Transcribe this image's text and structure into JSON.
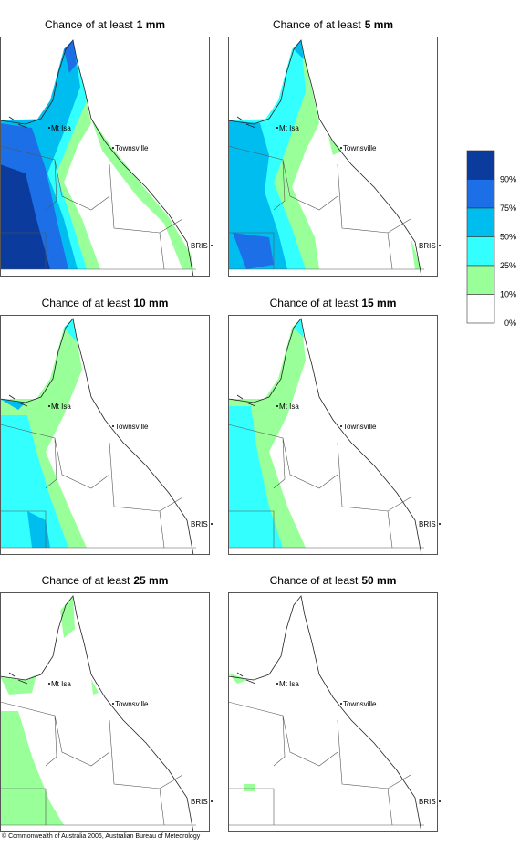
{
  "panels": [
    {
      "title": "Chance of at least",
      "amount": "1 mm",
      "places": [
        "Townsville",
        "Mt Isa",
        "BRIS"
      ]
    },
    {
      "title": "Chance of at least",
      "amount": "5 mm",
      "places": [
        "Townsville",
        "Mt Isa",
        "BRIS"
      ]
    },
    {
      "title": "Chance of at least",
      "amount": "10 mm",
      "places": [
        "Townsville",
        "Mt Isa",
        "BRIS"
      ]
    },
    {
      "title": "Chance of at least",
      "amount": "15 mm",
      "places": [
        "Townsville",
        "Mt Isa",
        "BRIS"
      ]
    },
    {
      "title": "Chance of at least",
      "amount": "25 mm",
      "places": [
        "Townsville",
        "Mt Isa",
        "BRIS"
      ]
    },
    {
      "title": "Chance of at least",
      "amount": "50 mm",
      "places": [
        "Townsville",
        "Mt Isa",
        "BRIS"
      ]
    }
  ],
  "legend": [
    {
      "label": "90%",
      "color": "#0b3b9c"
    },
    {
      "label": "75%",
      "color": "#1c6fe6"
    },
    {
      "label": "50%",
      "color": "#00bdf0"
    },
    {
      "label": "25%",
      "color": "#33ffff"
    },
    {
      "label": "10%",
      "color": "#99ff99"
    },
    {
      "label": "0%",
      "color": "#ffffff"
    }
  ],
  "footer": "© Commonwealth of Australia 2006, Australian Bureau of Meteorology"
}
